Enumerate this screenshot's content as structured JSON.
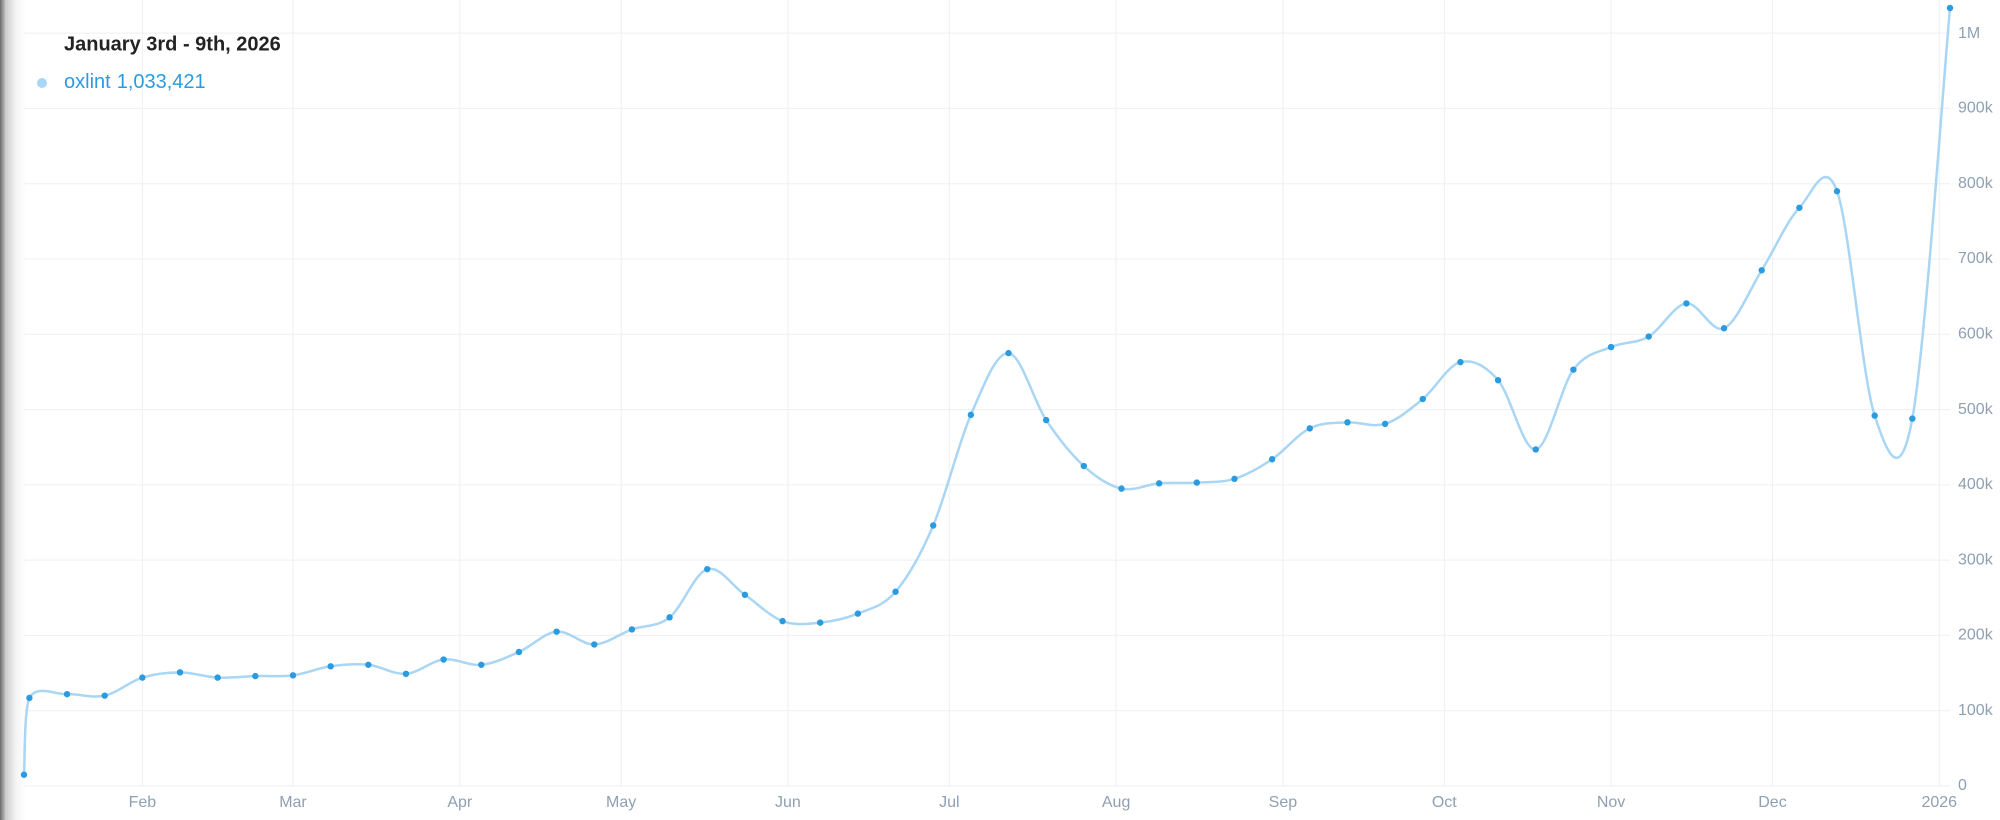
{
  "chart_data": {
    "type": "line",
    "hover": {
      "title": "January 3rd - 9th, 2026",
      "value_label": "1,033,421"
    },
    "x": [
      "2025-01-10",
      "2025-01-11",
      "2025-01-18",
      "2025-01-25",
      "2025-02-01",
      "2025-02-08",
      "2025-02-15",
      "2025-02-22",
      "2025-03-01",
      "2025-03-08",
      "2025-03-15",
      "2025-03-22",
      "2025-03-29",
      "2025-04-05",
      "2025-04-12",
      "2025-04-19",
      "2025-04-26",
      "2025-05-03",
      "2025-05-10",
      "2025-05-17",
      "2025-05-24",
      "2025-05-31",
      "2025-06-07",
      "2025-06-14",
      "2025-06-21",
      "2025-06-28",
      "2025-07-05",
      "2025-07-12",
      "2025-07-19",
      "2025-07-26",
      "2025-08-02",
      "2025-08-09",
      "2025-08-16",
      "2025-08-23",
      "2025-08-30",
      "2025-09-06",
      "2025-09-13",
      "2025-09-20",
      "2025-09-27",
      "2025-10-04",
      "2025-10-11",
      "2025-10-18",
      "2025-10-25",
      "2025-11-01",
      "2025-11-08",
      "2025-11-15",
      "2025-11-22",
      "2025-11-29",
      "2025-12-06",
      "2025-12-13",
      "2025-12-20",
      "2025-12-27",
      "2026-01-03"
    ],
    "series": [
      {
        "name": "oxlint",
        "color": "#2b9be0",
        "line_color": "#a9d6f4",
        "values": [
          15000,
          117000,
          122000,
          120000,
          144000,
          151000,
          144000,
          146000,
          147000,
          159000,
          161000,
          149000,
          168000,
          161000,
          178000,
          205000,
          188000,
          208000,
          224000,
          288000,
          254000,
          219000,
          217000,
          229000,
          258000,
          346000,
          493000,
          575000,
          486000,
          425000,
          395000,
          402000,
          403000,
          408000,
          434000,
          475000,
          483000,
          481000,
          514000,
          563000,
          539000,
          447000,
          553000,
          583000,
          597000,
          641000,
          608000,
          685000,
          768000,
          790000,
          492000,
          488000,
          1033421
        ]
      }
    ],
    "xlim": [
      "2025-01-10",
      "2026-01-03"
    ],
    "xticks": [
      {
        "value": "2025-02-01",
        "label": "Feb"
      },
      {
        "value": "2025-03-01",
        "label": "Mar"
      },
      {
        "value": "2025-04-01",
        "label": "Apr"
      },
      {
        "value": "2025-05-01",
        "label": "May"
      },
      {
        "value": "2025-06-01",
        "label": "Jun"
      },
      {
        "value": "2025-07-01",
        "label": "Jul"
      },
      {
        "value": "2025-08-01",
        "label": "Aug"
      },
      {
        "value": "2025-09-01",
        "label": "Sep"
      },
      {
        "value": "2025-10-01",
        "label": "Oct"
      },
      {
        "value": "2025-11-01",
        "label": "Nov"
      },
      {
        "value": "2025-12-01",
        "label": "Dec"
      },
      {
        "value": "2026-01-01",
        "label": "2026"
      }
    ],
    "ylim": [
      0,
      1044000
    ],
    "yticks": [
      0,
      {
        "value": 100000,
        "label": "100k"
      },
      {
        "value": 200000,
        "label": "200k"
      },
      {
        "value": 300000,
        "label": "300k"
      },
      {
        "value": 400000,
        "label": "400k"
      },
      {
        "value": 500000,
        "label": "500k"
      },
      {
        "value": 600000,
        "label": "600k"
      },
      {
        "value": 700000,
        "label": "700k"
      },
      {
        "value": 800000,
        "label": "800k"
      },
      {
        "value": 900000,
        "label": "900k"
      },
      {
        "value": 1000000,
        "label": "1M"
      }
    ],
    "grid": true
  }
}
